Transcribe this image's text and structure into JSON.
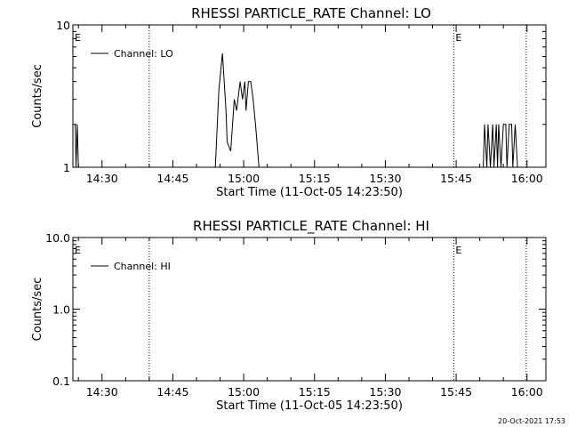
{
  "chart_data": [
    {
      "type": "line",
      "title": "RHESSI PARTICLE_RATE Channel: LO",
      "xlabel": "Start Time (11-Oct-05 14:23:50)",
      "ylabel": "Counts/sec",
      "y_scale": "log",
      "ylim": [
        1,
        10
      ],
      "xlim": [
        "14:23:50",
        "16:04:00"
      ],
      "x_ticks": [
        "14:30",
        "14:45",
        "15:00",
        "15:15",
        "15:30",
        "15:45",
        "16:00"
      ],
      "y_ticks": [
        "1",
        "10"
      ],
      "legend_position": "top-left",
      "grid": false,
      "vlines": [
        "14:40:00",
        "15:44:30",
        "15:59:50"
      ],
      "markers": [
        {
          "label": "E",
          "x": "14:23:50"
        },
        {
          "label": "E",
          "x": "15:44:30"
        }
      ],
      "series": [
        {
          "name": "Channel: LO",
          "x": [
            "14:24:20",
            "14:24:30",
            "14:24:45",
            "14:25:00",
            "14:25:15",
            "14:25:30",
            "14:54:00",
            "14:54:45",
            "14:55:30",
            "14:56:15",
            "14:56:30",
            "14:57:15",
            "14:58:00",
            "14:58:30",
            "14:59:15",
            "14:59:45",
            "15:00:15",
            "15:00:30",
            "15:01:00",
            "15:01:30",
            "15:02:00",
            "15:02:30",
            "15:03:15",
            "15:50:45",
            "15:51:00",
            "15:51:30",
            "15:51:45",
            "15:52:15",
            "15:52:45",
            "15:53:00",
            "15:53:30",
            "15:53:45",
            "15:54:00",
            "15:54:30",
            "15:55:00",
            "15:55:30",
            "15:55:45",
            "15:56:15",
            "15:56:45",
            "15:57:00",
            "15:57:30",
            "15:58:00"
          ],
          "values": [
            2,
            1,
            2,
            1,
            1,
            1,
            1,
            3.5,
            6.3,
            2.5,
            1.5,
            1.3,
            3,
            2.5,
            4,
            3,
            4,
            2.5,
            4,
            4,
            3,
            2,
            1,
            1,
            2,
            1,
            2,
            1,
            2,
            1,
            2,
            1,
            2,
            1,
            2,
            2,
            1,
            2,
            2,
            1,
            2,
            1
          ]
        }
      ]
    },
    {
      "type": "line",
      "title": "RHESSI PARTICLE_RATE Channel: HI",
      "xlabel": "Start Time (11-Oct-05 14:23:50)",
      "ylabel": "Counts/sec",
      "y_scale": "log",
      "ylim": [
        0.1,
        10
      ],
      "xlim": [
        "14:23:50",
        "16:04:00"
      ],
      "x_ticks": [
        "14:30",
        "14:45",
        "15:00",
        "15:15",
        "15:30",
        "15:45",
        "16:00"
      ],
      "y_ticks": [
        "0.1",
        "1.0",
        "10.0"
      ],
      "legend_position": "top-left",
      "grid": false,
      "vlines": [
        "14:40:00",
        "15:44:30",
        "15:59:50"
      ],
      "markers": [
        {
          "label": "E",
          "x": "14:23:50"
        },
        {
          "label": "E",
          "x": "15:44:30"
        }
      ],
      "series": [
        {
          "name": "Channel: HI",
          "x": [],
          "values": []
        }
      ]
    }
  ],
  "footer": {
    "timestamp": "20-Oct-2021 17:53"
  },
  "colors": {
    "line": "#000000",
    "background": "#ffffff"
  }
}
